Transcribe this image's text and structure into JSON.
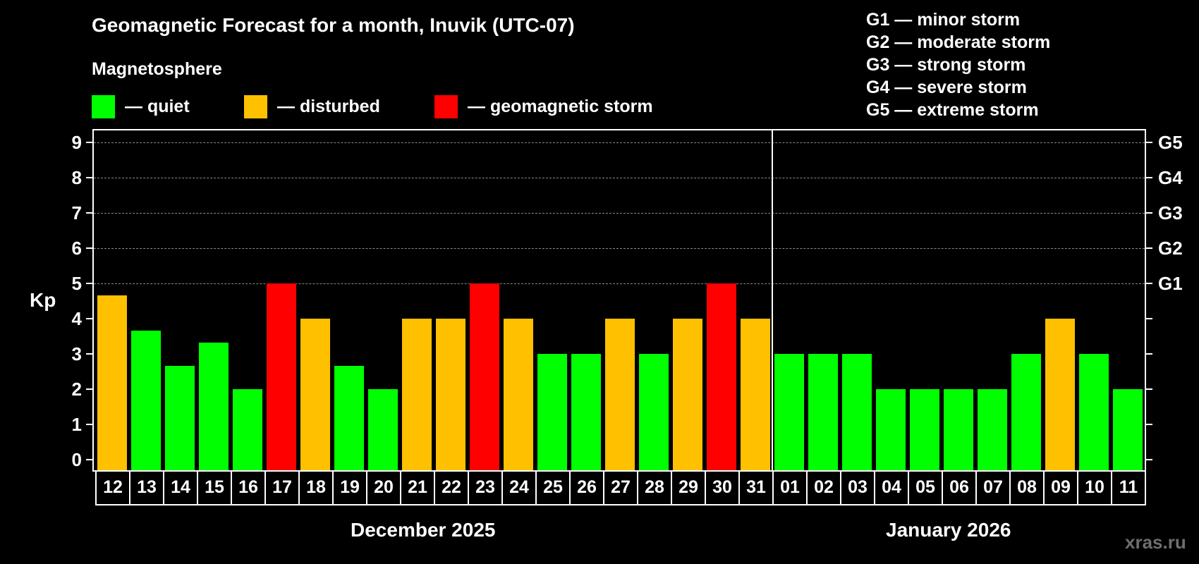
{
  "header": {
    "title": "Geomagnetic Forecast for a month, Inuvik (UTC-07)",
    "subtitle": "Magnetosphere"
  },
  "legend": [
    {
      "label": "— quiet",
      "color": "#00ff00"
    },
    {
      "label": "— disturbed",
      "color": "#ffc000"
    },
    {
      "label": "— geomagnetic storm",
      "color": "#ff0000"
    }
  ],
  "storm_scale": [
    "G1 — minor storm",
    "G2 — moderate storm",
    "G3 — strong storm",
    "G4 — severe storm",
    "G5 — extreme storm"
  ],
  "axis": {
    "ylabel": "Kp",
    "yticks": [
      "0",
      "1",
      "2",
      "3",
      "4",
      "5",
      "6",
      "7",
      "8",
      "9"
    ],
    "right_labels": [
      {
        "kp": 5,
        "label": "G1"
      },
      {
        "kp": 6,
        "label": "G2"
      },
      {
        "kp": 7,
        "label": "G3"
      },
      {
        "kp": 8,
        "label": "G4"
      },
      {
        "kp": 9,
        "label": "G5"
      }
    ]
  },
  "months": [
    {
      "label": "December 2025"
    },
    {
      "label": "January 2026"
    }
  ],
  "watermark": "xras.ru",
  "colors": {
    "quiet": "#00ff00",
    "disturbed": "#ffc000",
    "storm": "#ff0000"
  },
  "chart_data": {
    "type": "bar",
    "title": "Geomagnetic Forecast for a month, Inuvik (UTC-07)",
    "xlabel": "December 2025 / January 2026",
    "ylabel": "Kp",
    "ylim": [
      0,
      9
    ],
    "grid": true,
    "legend_position": "top",
    "categories": [
      "12",
      "13",
      "14",
      "15",
      "16",
      "17",
      "18",
      "19",
      "20",
      "21",
      "22",
      "23",
      "24",
      "25",
      "26",
      "27",
      "28",
      "29",
      "30",
      "31",
      "01",
      "02",
      "03",
      "04",
      "05",
      "06",
      "07",
      "08",
      "09",
      "10",
      "11"
    ],
    "values": [
      4.67,
      3.67,
      2.67,
      3.33,
      2,
      5,
      4,
      2.67,
      2,
      4,
      4,
      5,
      4,
      3,
      3,
      4,
      3,
      4,
      5,
      4,
      3,
      3,
      3,
      2,
      2,
      2,
      2,
      3,
      4,
      3,
      2
    ],
    "status": [
      "disturbed",
      "quiet",
      "quiet",
      "quiet",
      "quiet",
      "storm",
      "disturbed",
      "quiet",
      "quiet",
      "disturbed",
      "disturbed",
      "storm",
      "disturbed",
      "quiet",
      "quiet",
      "disturbed",
      "quiet",
      "disturbed",
      "storm",
      "disturbed",
      "quiet",
      "quiet",
      "quiet",
      "quiet",
      "quiet",
      "quiet",
      "quiet",
      "quiet",
      "disturbed",
      "quiet",
      "quiet"
    ],
    "month_groups": [
      {
        "label": "December 2025",
        "days": [
          "12",
          "13",
          "14",
          "15",
          "16",
          "17",
          "18",
          "19",
          "20",
          "21",
          "22",
          "23",
          "24",
          "25",
          "26",
          "27",
          "28",
          "29",
          "30",
          "31"
        ]
      },
      {
        "label": "January 2026",
        "days": [
          "01",
          "02",
          "03",
          "04",
          "05",
          "06",
          "07",
          "08",
          "09",
          "10",
          "11"
        ]
      }
    ],
    "right_axis": {
      "5": "G1",
      "6": "G2",
      "7": "G3",
      "8": "G4",
      "9": "G5"
    }
  }
}
